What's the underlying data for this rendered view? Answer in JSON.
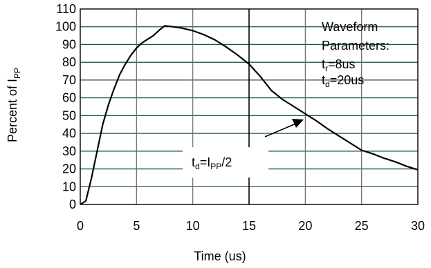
{
  "chart_data": {
    "type": "line",
    "xlabel": "Time (us)",
    "ylabel": {
      "main": "Percent of I",
      "sub": "PP"
    },
    "xlim": [
      0,
      30
    ],
    "ylim": [
      0,
      110
    ],
    "xticks": [
      0,
      5,
      10,
      15,
      20,
      25,
      30
    ],
    "yticks": [
      0,
      10,
      20,
      30,
      40,
      50,
      60,
      70,
      80,
      90,
      100,
      110
    ],
    "grid": true,
    "colors": {
      "horizontal_grid": "#1f5a36",
      "vertical_grid": "#6a6a6a",
      "major_vertical_grid": "#000000",
      "curve": "#000000"
    },
    "series": [
      {
        "x": [
          0,
          0.5,
          1,
          1.5,
          2,
          2.5,
          3,
          3.5,
          4,
          4.5,
          5,
          5.5,
          6,
          6.5,
          7,
          7.5,
          8,
          9,
          10,
          11,
          12,
          13,
          14,
          15,
          16,
          17,
          18,
          19,
          20,
          21,
          22,
          23,
          24,
          25,
          26,
          27,
          28,
          29,
          30
        ],
        "y": [
          0,
          2,
          15,
          30,
          45,
          56,
          65,
          73,
          79,
          84,
          88,
          91,
          93,
          95,
          98,
          100.5,
          100.2,
          99.3,
          97.8,
          95.5,
          92.5,
          88.5,
          84,
          79,
          72,
          64,
          59,
          55,
          51,
          47,
          42.5,
          38.5,
          34.5,
          30.5,
          28.5,
          26,
          24,
          21.5,
          19.5
        ]
      }
    ],
    "annotations": {
      "waveform": {
        "line1": "Waveform",
        "line2": "Parameters:",
        "tr_main": "t",
        "tr_sub": "r",
        "tr_value": "=8us",
        "td_main": "t",
        "td_sub": "d",
        "td_value": "=20us"
      },
      "td_label": {
        "t": "t",
        "d": "d",
        "eq": "=I",
        "pp": "PP",
        "tail": "/2"
      }
    }
  }
}
